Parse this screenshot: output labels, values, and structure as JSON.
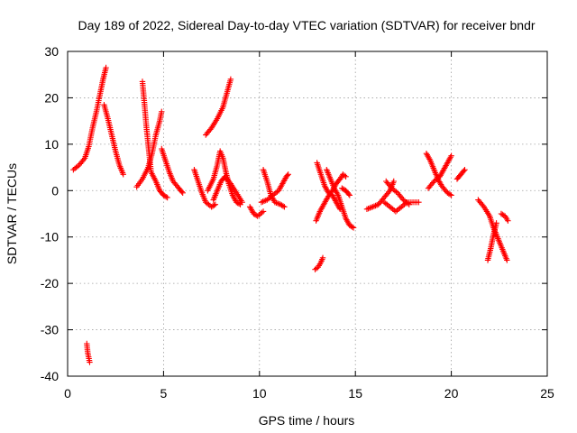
{
  "chart_data": {
    "type": "scatter",
    "title": "Day 189 of 2022, Sidereal Day-to-day VTEC variation (SDTVAR) for receiver bndr",
    "xlabel": "GPS time / hours",
    "ylabel": "SDTVAR / TECUs",
    "xlim": [
      0,
      25
    ],
    "ylim": [
      -40,
      30
    ],
    "xticks": [
      0,
      5,
      10,
      15,
      20,
      25
    ],
    "yticks": [
      -40,
      -30,
      -20,
      -10,
      0,
      10,
      20,
      30
    ],
    "xtick_labels": [
      "0",
      "5",
      "10",
      "15",
      "20",
      "25"
    ],
    "ytick_labels": [
      "-40",
      "-30",
      "-20",
      "-10",
      "0",
      "10",
      "20",
      "30"
    ],
    "grid": true,
    "legend": "none",
    "marker": "plus",
    "color": "#ff0000",
    "segments": [
      [
        [
          0.3,
          4.5
        ],
        [
          0.6,
          5.5
        ],
        [
          0.9,
          7.0
        ],
        [
          1.1,
          9.5
        ],
        [
          1.3,
          13.5
        ],
        [
          1.5,
          17.0
        ],
        [
          1.7,
          21.0
        ],
        [
          1.85,
          24.0
        ],
        [
          2.0,
          26.5
        ]
      ],
      [
        [
          1.0,
          -33.0
        ],
        [
          1.05,
          -35.0
        ],
        [
          1.15,
          -37.0
        ]
      ],
      [
        [
          1.9,
          18.5
        ],
        [
          2.1,
          15.5
        ],
        [
          2.3,
          12.0
        ],
        [
          2.5,
          8.5
        ],
        [
          2.7,
          5.5
        ],
        [
          2.9,
          3.5
        ]
      ],
      [
        [
          3.6,
          0.8
        ],
        [
          3.9,
          2.5
        ],
        [
          4.2,
          5.0
        ],
        [
          4.4,
          8.0
        ],
        [
          4.6,
          12.0
        ],
        [
          4.8,
          15.0
        ],
        [
          4.9,
          17.0
        ]
      ],
      [
        [
          3.9,
          23.5
        ],
        [
          4.0,
          19.0
        ],
        [
          4.1,
          14.0
        ],
        [
          4.25,
          8.0
        ],
        [
          4.35,
          4.0
        ],
        [
          4.6,
          2.0
        ],
        [
          4.8,
          0.0
        ],
        [
          5.0,
          -1.0
        ],
        [
          5.2,
          -1.5
        ]
      ],
      [
        [
          4.9,
          9.0
        ],
        [
          5.1,
          6.5
        ],
        [
          5.3,
          4.0
        ],
        [
          5.5,
          2.0
        ],
        [
          5.8,
          0.5
        ],
        [
          6.0,
          -0.5
        ]
      ],
      [
        [
          6.6,
          4.5
        ],
        [
          6.8,
          2.0
        ],
        [
          7.0,
          -0.5
        ],
        [
          7.2,
          -2.5
        ],
        [
          7.5,
          -3.5
        ],
        [
          7.7,
          -3.0
        ]
      ],
      [
        [
          7.2,
          12.0
        ],
        [
          7.5,
          13.5
        ],
        [
          7.8,
          15.5
        ],
        [
          8.1,
          18.0
        ],
        [
          8.3,
          21.0
        ],
        [
          8.5,
          24.0
        ]
      ],
      [
        [
          7.3,
          0.0
        ],
        [
          7.6,
          2.5
        ],
        [
          7.8,
          5.5
        ],
        [
          7.95,
          8.5
        ],
        [
          8.1,
          7.0
        ],
        [
          8.25,
          4.0
        ],
        [
          8.4,
          1.5
        ],
        [
          8.6,
          -1.0
        ],
        [
          8.8,
          -2.5
        ],
        [
          9.0,
          -3.0
        ]
      ],
      [
        [
          7.6,
          -2.0
        ],
        [
          7.8,
          0.0
        ],
        [
          8.0,
          2.0
        ],
        [
          8.2,
          3.0
        ],
        [
          8.5,
          1.5
        ],
        [
          8.8,
          -0.5
        ],
        [
          9.1,
          -2.5
        ]
      ],
      [
        [
          9.5,
          -3.5
        ],
        [
          9.7,
          -5.0
        ],
        [
          9.9,
          -5.5
        ],
        [
          10.2,
          -4.5
        ]
      ],
      [
        [
          10.2,
          4.5
        ],
        [
          10.4,
          2.0
        ],
        [
          10.6,
          -1.0
        ],
        [
          10.8,
          -2.5
        ],
        [
          11.1,
          -3.0
        ],
        [
          11.3,
          -3.5
        ]
      ],
      [
        [
          10.1,
          -2.5
        ],
        [
          10.4,
          -2.0
        ],
        [
          10.7,
          -1.0
        ],
        [
          11.0,
          0.0
        ],
        [
          11.2,
          1.5
        ],
        [
          11.4,
          3.0
        ],
        [
          11.5,
          3.5
        ]
      ],
      [
        [
          12.9,
          -17.0
        ],
        [
          13.05,
          -16.5
        ],
        [
          13.2,
          -15.5
        ],
        [
          13.3,
          -14.5
        ]
      ],
      [
        [
          12.95,
          -6.5
        ],
        [
          13.15,
          -4.5
        ],
        [
          13.35,
          -3.0
        ],
        [
          13.55,
          -1.5
        ],
        [
          13.8,
          0.0
        ],
        [
          14.0,
          1.5
        ],
        [
          14.2,
          2.5
        ],
        [
          14.35,
          3.5
        ],
        [
          14.5,
          3.0
        ]
      ],
      [
        [
          13.0,
          6.0
        ],
        [
          13.2,
          3.5
        ],
        [
          13.4,
          1.0
        ],
        [
          13.6,
          -0.5
        ],
        [
          13.8,
          -1.0
        ],
        [
          14.0,
          -2.5
        ],
        [
          14.2,
          -4.0
        ]
      ],
      [
        [
          13.5,
          4.5
        ],
        [
          13.7,
          2.5
        ],
        [
          13.9,
          0.5
        ],
        [
          14.1,
          -1.0
        ],
        [
          14.3,
          -3.5
        ],
        [
          14.5,
          -6.0
        ],
        [
          14.7,
          -7.5
        ],
        [
          14.9,
          -8.0
        ]
      ],
      [
        [
          14.3,
          0.5
        ],
        [
          14.5,
          0.0
        ],
        [
          14.7,
          -1.0
        ]
      ],
      [
        [
          15.6,
          -4.0
        ],
        [
          15.9,
          -3.5
        ],
        [
          16.2,
          -3.0
        ],
        [
          16.5,
          -1.5
        ],
        [
          16.8,
          0.0
        ],
        [
          17.0,
          2.0
        ]
      ],
      [
        [
          16.5,
          -2.5
        ],
        [
          16.8,
          -3.5
        ],
        [
          17.1,
          -4.5
        ],
        [
          17.4,
          -3.5
        ],
        [
          17.7,
          -2.5
        ],
        [
          18.0,
          -2.5
        ],
        [
          18.3,
          -2.5
        ]
      ],
      [
        [
          16.6,
          2.0
        ],
        [
          16.9,
          0.5
        ],
        [
          17.2,
          -0.5
        ],
        [
          17.5,
          -2.0
        ],
        [
          17.8,
          -3.0
        ]
      ],
      [
        [
          18.7,
          8.0
        ],
        [
          18.9,
          6.5
        ],
        [
          19.1,
          4.5
        ],
        [
          19.3,
          2.5
        ],
        [
          19.5,
          1.0
        ],
        [
          19.8,
          -0.5
        ],
        [
          20.0,
          -1.0
        ]
      ],
      [
        [
          18.8,
          0.5
        ],
        [
          19.1,
          2.0
        ],
        [
          19.4,
          3.0
        ],
        [
          19.6,
          4.5
        ],
        [
          19.8,
          6.0
        ],
        [
          20.0,
          7.5
        ]
      ],
      [
        [
          20.3,
          2.5
        ],
        [
          20.5,
          3.5
        ],
        [
          20.7,
          4.5
        ]
      ],
      [
        [
          21.4,
          -2.0
        ],
        [
          21.7,
          -3.5
        ],
        [
          22.0,
          -5.5
        ],
        [
          22.2,
          -8.0
        ],
        [
          22.4,
          -10.0
        ],
        [
          22.6,
          -12.0
        ],
        [
          22.8,
          -14.0
        ],
        [
          22.9,
          -15.0
        ]
      ],
      [
        [
          21.9,
          -15.0
        ],
        [
          22.05,
          -12.5
        ],
        [
          22.2,
          -9.5
        ],
        [
          22.35,
          -7.0
        ]
      ],
      [
        [
          22.6,
          -5.0
        ],
        [
          22.8,
          -5.5
        ],
        [
          22.95,
          -6.5
        ]
      ]
    ]
  }
}
